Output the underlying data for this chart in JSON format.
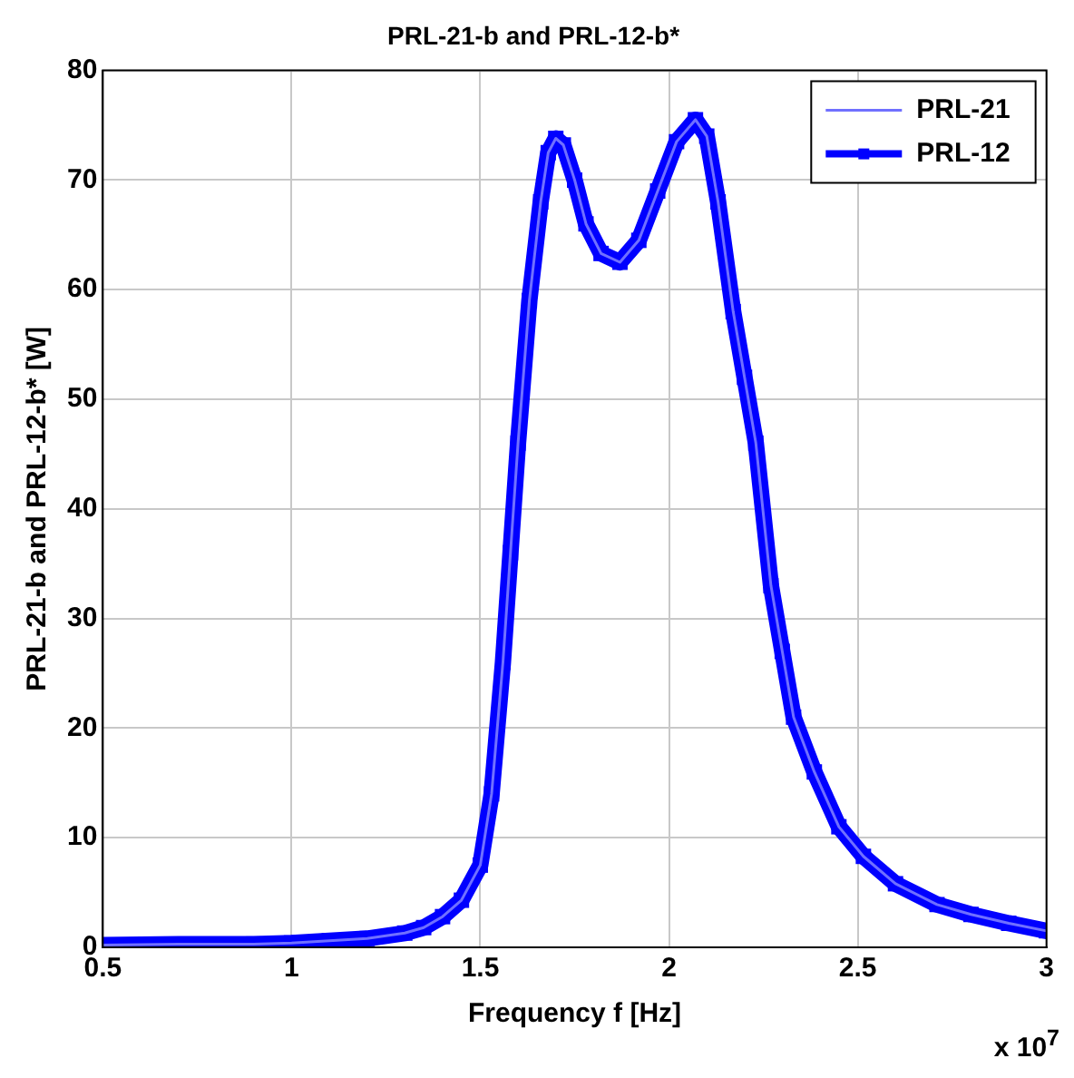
{
  "chart_data": {
    "type": "line",
    "title": "PRL-21-b and PRL-12-b*",
    "xlabel": "Frequency f [Hz]",
    "ylabel": "PRL-21-b and PRL-12-b* [W]",
    "annotations": [
      "x 10$^{7}$"
    ],
    "x": [
      0.5,
      0.7,
      0.9,
      1.0,
      1.1,
      1.2,
      1.3,
      1.35,
      1.4,
      1.45,
      1.5,
      1.53,
      1.56,
      1.58,
      1.6,
      1.63,
      1.66,
      1.68,
      1.7,
      1.72,
      1.75,
      1.78,
      1.82,
      1.87,
      1.92,
      1.97,
      2.02,
      2.07,
      2.1,
      2.13,
      2.17,
      2.2,
      2.23,
      2.27,
      2.3,
      2.33,
      2.385,
      2.45,
      2.515,
      2.6,
      2.71,
      2.8,
      2.9,
      3.0
    ],
    "series": [
      {
        "name": "PRL-21",
        "color": "#7070ff",
        "marker": "none",
        "values": [
          0.2,
          0.3,
          0.3,
          0.4,
          0.6,
          0.8,
          1.3,
          1.8,
          2.8,
          4.3,
          7.5,
          14,
          26,
          36,
          46,
          59,
          68,
          72.5,
          73.8,
          73.2,
          70,
          66,
          63.3,
          62.5,
          64.5,
          69,
          73.5,
          75.5,
          74,
          68,
          58,
          52,
          46,
          33,
          27,
          21,
          16,
          11,
          8.3,
          5.8,
          3.9,
          3,
          2.2,
          1.5
        ]
      },
      {
        "name": "PRL-12",
        "color": "#0000ff",
        "marker": "square",
        "values": [
          0.2,
          0.3,
          0.3,
          0.4,
          0.6,
          0.8,
          1.3,
          1.8,
          2.8,
          4.3,
          7.5,
          14,
          26,
          36,
          46,
          59,
          68,
          72.5,
          73.8,
          73.2,
          70,
          66,
          63.3,
          62.5,
          64.5,
          69,
          73.5,
          75.5,
          74,
          68,
          58,
          52,
          46,
          33,
          27,
          21,
          16,
          11,
          8.3,
          5.8,
          3.9,
          3,
          2.2,
          1.5
        ]
      }
    ],
    "xlim": [
      0.5,
      3
    ],
    "xticks": [
      0.5,
      1,
      1.5,
      2,
      2.5,
      3
    ],
    "ylim": [
      0,
      80
    ],
    "yticks": [
      0,
      10,
      20,
      30,
      40,
      50,
      60,
      70,
      80
    ],
    "grid": true,
    "legend": "top right",
    "line_style": "solid"
  }
}
